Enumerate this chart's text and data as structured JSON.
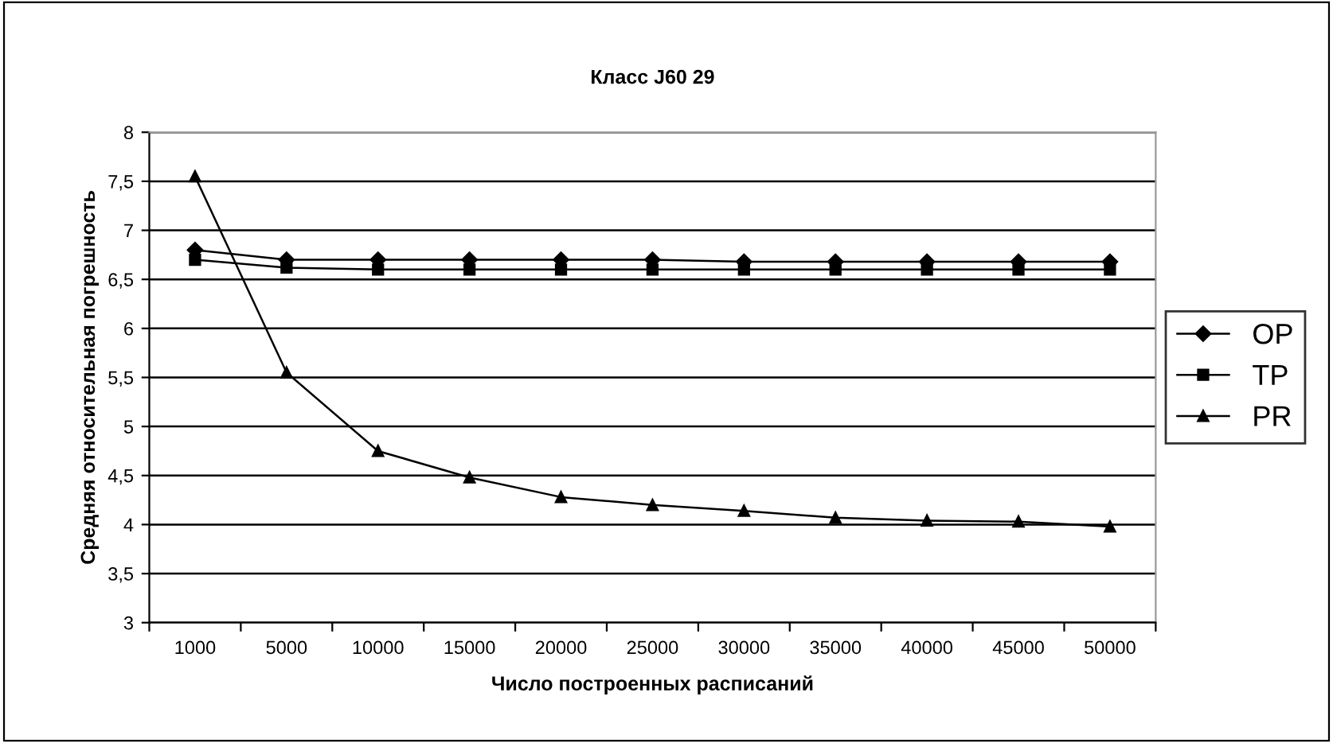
{
  "chart_data": {
    "type": "line",
    "title": "Класс J60 29",
    "xlabel": "Число построенных расписаний",
    "ylabel": "Средняя относительная погрешность",
    "categories": [
      "1000",
      "5000",
      "10000",
      "15000",
      "20000",
      "25000",
      "30000",
      "35000",
      "40000",
      "45000",
      "50000"
    ],
    "series": [
      {
        "name": "OP",
        "color": "#000000",
        "marker": "diamond",
        "values": [
          6.8,
          6.7,
          6.7,
          6.7,
          6.7,
          6.7,
          6.68,
          6.68,
          6.68,
          6.68,
          6.68
        ]
      },
      {
        "name": "TP",
        "color": "#000000",
        "marker": "square",
        "values": [
          6.7,
          6.62,
          6.6,
          6.6,
          6.6,
          6.6,
          6.6,
          6.6,
          6.6,
          6.6,
          6.6
        ]
      },
      {
        "name": "PR",
        "color": "#000000",
        "marker": "triangle",
        "values": [
          7.55,
          5.55,
          4.75,
          4.48,
          4.28,
          4.2,
          4.14,
          4.07,
          4.04,
          4.03,
          3.98
        ]
      }
    ],
    "ylim": [
      3,
      8
    ],
    "yticks": [
      3,
      {
        "value": 3.5,
        "label": "3,5"
      },
      4,
      {
        "value": 4.5,
        "label": "4,5"
      },
      5,
      {
        "value": 5.5,
        "label": "5,5"
      },
      6,
      {
        "value": 6.5,
        "label": "6,5"
      },
      7,
      {
        "value": 7.5,
        "label": "7,5"
      },
      8
    ],
    "grid": "y",
    "legend": "right",
    "line_style": "solid"
  }
}
